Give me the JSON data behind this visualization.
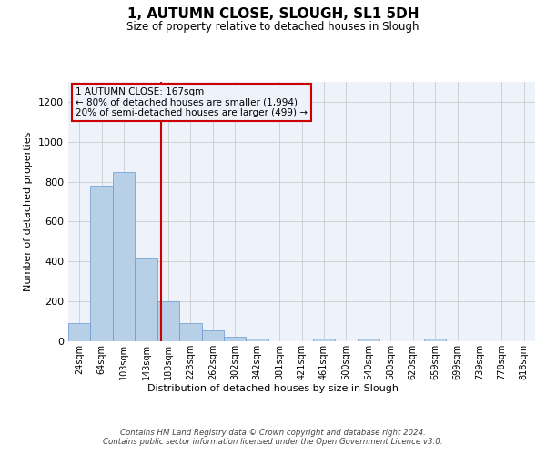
{
  "title": "1, AUTUMN CLOSE, SLOUGH, SL1 5DH",
  "subtitle": "Size of property relative to detached houses in Slough",
  "xlabel": "Distribution of detached houses by size in Slough",
  "ylabel": "Number of detached properties",
  "categories": [
    "24sqm",
    "64sqm",
    "103sqm",
    "143sqm",
    "183sqm",
    "223sqm",
    "262sqm",
    "302sqm",
    "342sqm",
    "381sqm",
    "421sqm",
    "461sqm",
    "500sqm",
    "540sqm",
    "580sqm",
    "620sqm",
    "659sqm",
    "699sqm",
    "739sqm",
    "778sqm",
    "818sqm"
  ],
  "values": [
    90,
    780,
    850,
    415,
    200,
    90,
    55,
    25,
    15,
    0,
    0,
    12,
    0,
    12,
    0,
    0,
    12,
    0,
    0,
    0,
    0
  ],
  "bar_color": "#b8cfe8",
  "bar_edge_color": "#6699cc",
  "grid_color": "#cccccc",
  "bg_color": "#eef2fa",
  "vline_color": "#cc0000",
  "vline_x": 3.67,
  "annotation_text": "1 AUTUMN CLOSE: 167sqm\n← 80% of detached houses are smaller (1,994)\n20% of semi-detached houses are larger (499) →",
  "annotation_box_color": "#eef2fa",
  "annotation_box_edge": "#cc0000",
  "footer": "Contains HM Land Registry data © Crown copyright and database right 2024.\nContains public sector information licensed under the Open Government Licence v3.0.",
  "ylim": [
    0,
    1300
  ],
  "yticks": [
    0,
    200,
    400,
    600,
    800,
    1000,
    1200
  ]
}
